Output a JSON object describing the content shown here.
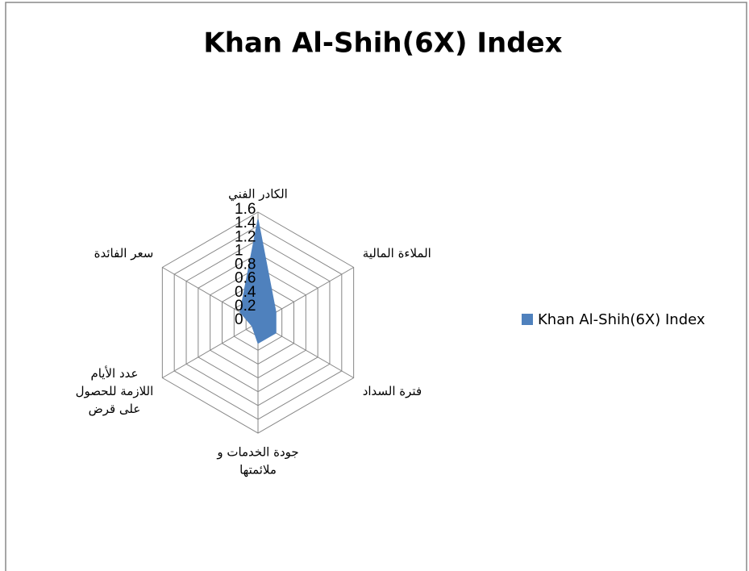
{
  "chart_data": {
    "type": "radar",
    "title": "Khan Al-Shih(6X) Index",
    "categories": [
      [
        "الكادر الفني"
      ],
      [
        "الملاءة المالية"
      ],
      [
        "فترة السداد"
      ],
      [
        "جودة الخدمات و",
        "ملائمتها"
      ],
      [
        "عدد الأيام",
        "اللازمة للحصول",
        "على قرض"
      ],
      [
        "سعر الفائدة"
      ]
    ],
    "series": [
      {
        "name": "Khan Al-Shih(6X) Index",
        "color": "#4f81bd",
        "values": [
          1.5,
          0.3,
          0.3,
          0.3,
          0.1,
          0.3
        ]
      }
    ],
    "ylim": [
      0,
      1.6
    ],
    "yticks": [
      0,
      0.2,
      0.4,
      0.6,
      0.8,
      1,
      1.2,
      1.4,
      1.6
    ],
    "grid": true,
    "legend": "right"
  }
}
